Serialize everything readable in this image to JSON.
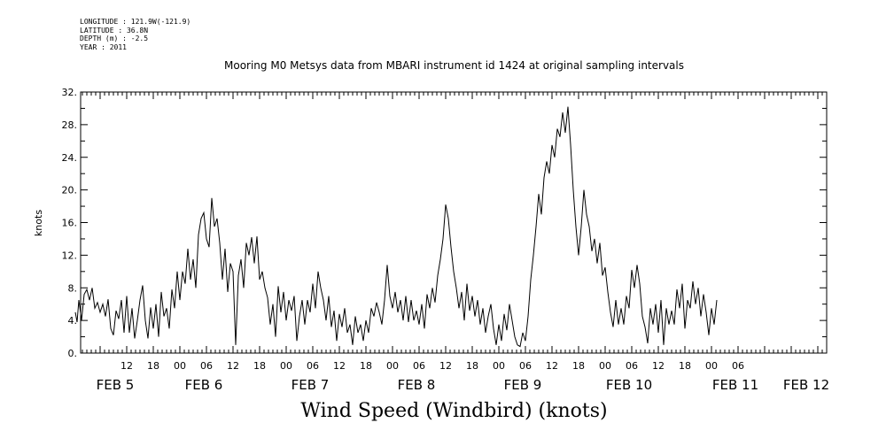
{
  "header": {
    "longitude": "LONGITUDE : 121.9W(-121.9)",
    "latitude": "LATITUDE : 36.8N",
    "depth": "DEPTH (m) : -2.5",
    "year": "YEAR : 2011"
  },
  "chart_data": {
    "type": "line",
    "title": "Mooring M0 Metsys data from MBARI instrument id 1424 at original sampling intervals",
    "xlabel": "Wind Speed (Windbird) (knots)",
    "ylabel": "knots",
    "ylim": [
      0,
      32
    ],
    "xlim": [
      -6,
      147
    ],
    "y_ticks": [
      "0.",
      "4.",
      "8.",
      "12.",
      "16.",
      "20.",
      "24.",
      "28.",
      "32."
    ],
    "hour_ticks": [
      {
        "x": 6,
        "label": "12"
      },
      {
        "x": 12,
        "label": "18"
      },
      {
        "x": 18,
        "label": "00"
      },
      {
        "x": 24,
        "label": "06"
      },
      {
        "x": 30,
        "label": "12"
      },
      {
        "x": 36,
        "label": "18"
      },
      {
        "x": 42,
        "label": "00"
      },
      {
        "x": 48,
        "label": "06"
      },
      {
        "x": 54,
        "label": "12"
      },
      {
        "x": 60,
        "label": "18"
      },
      {
        "x": 66,
        "label": "00"
      },
      {
        "x": 72,
        "label": "06"
      },
      {
        "x": 78,
        "label": "12"
      },
      {
        "x": 84,
        "label": "18"
      },
      {
        "x": 90,
        "label": "00"
      },
      {
        "x": 96,
        "label": "06"
      },
      {
        "x": 102,
        "label": "12"
      },
      {
        "x": 108,
        "label": "18"
      },
      {
        "x": 114,
        "label": "00"
      },
      {
        "x": 120,
        "label": "06"
      },
      {
        "x": 126,
        "label": "12"
      },
      {
        "x": 132,
        "label": "18"
      },
      {
        "x": 138,
        "label": "00"
      },
      {
        "x": 144,
        "label": "06"
      }
    ],
    "day_labels": [
      {
        "x": 0,
        "label": "FEB  5"
      },
      {
        "x": 24,
        "label": "FEB  6"
      },
      {
        "x": 48,
        "label": "FEB  7"
      },
      {
        "x": 72,
        "label": "FEB  8"
      },
      {
        "x": 96,
        "label": "FEB  9"
      },
      {
        "x": 120,
        "label": "FEB 10"
      },
      {
        "x": 144,
        "label": "FEB 11"
      },
      {
        "x": 160,
        "label": "FEB 12"
      }
    ],
    "series": [
      {
        "x_unit": "hours since FEB 5 06:00",
        "points": [
          [
            -5.6,
            5
          ],
          [
            -5.2,
            3.8
          ],
          [
            -4.8,
            6.5
          ],
          [
            -4.2,
            4
          ],
          [
            -3.6,
            7.2
          ],
          [
            -3,
            7.8
          ],
          [
            -2.4,
            6.5
          ],
          [
            -1.8,
            8
          ],
          [
            -1.2,
            5.5
          ],
          [
            -0.6,
            6.2
          ],
          [
            0,
            5
          ],
          [
            0.6,
            6
          ],
          [
            1.2,
            4.5
          ],
          [
            1.8,
            6.6
          ],
          [
            2.4,
            3
          ],
          [
            3,
            2.2
          ],
          [
            3.6,
            5.2
          ],
          [
            4.2,
            4.2
          ],
          [
            4.8,
            6.5
          ],
          [
            5.4,
            2.5
          ],
          [
            6,
            7
          ],
          [
            6.6,
            2.5
          ],
          [
            7.2,
            5.5
          ],
          [
            7.8,
            1.8
          ],
          [
            8.4,
            4
          ],
          [
            9,
            6.5
          ],
          [
            9.6,
            8.3
          ],
          [
            10.2,
            4
          ],
          [
            10.8,
            1.8
          ],
          [
            11.4,
            5.6
          ],
          [
            12,
            3
          ],
          [
            12.6,
            6
          ],
          [
            13.2,
            2
          ],
          [
            13.8,
            7.5
          ],
          [
            14.4,
            4.5
          ],
          [
            15,
            5.5
          ],
          [
            15.6,
            3
          ],
          [
            16.2,
            7.8
          ],
          [
            16.8,
            5.5
          ],
          [
            17.4,
            10
          ],
          [
            18,
            6.5
          ],
          [
            18.6,
            10
          ],
          [
            19.2,
            8.5
          ],
          [
            19.8,
            12.8
          ],
          [
            20.4,
            9
          ],
          [
            21,
            11.5
          ],
          [
            21.6,
            8
          ],
          [
            22.2,
            14.5
          ],
          [
            22.8,
            16.5
          ],
          [
            23.4,
            17.2
          ],
          [
            24,
            14
          ],
          [
            24.6,
            13
          ],
          [
            25.2,
            19
          ],
          [
            25.8,
            15.5
          ],
          [
            26.4,
            16.5
          ],
          [
            27,
            13.5
          ],
          [
            27.6,
            9
          ],
          [
            28.2,
            12.8
          ],
          [
            28.8,
            7.5
          ],
          [
            29.4,
            11
          ],
          [
            30,
            10
          ],
          [
            30.6,
            1
          ],
          [
            31.2,
            9.5
          ],
          [
            31.8,
            11.5
          ],
          [
            32.4,
            8
          ],
          [
            33,
            13.5
          ],
          [
            33.6,
            12
          ],
          [
            34.2,
            14.2
          ],
          [
            34.8,
            11
          ],
          [
            35.4,
            14.3
          ],
          [
            36,
            9
          ],
          [
            36.6,
            10
          ],
          [
            37.2,
            8
          ],
          [
            37.8,
            6.8
          ],
          [
            38.4,
            3.5
          ],
          [
            39,
            6
          ],
          [
            39.6,
            2
          ],
          [
            40.2,
            8.2
          ],
          [
            40.8,
            5
          ],
          [
            41.4,
            7.5
          ],
          [
            42,
            4
          ],
          [
            42.6,
            6.5
          ],
          [
            43.2,
            5.2
          ],
          [
            43.8,
            7
          ],
          [
            44.4,
            1.5
          ],
          [
            45,
            4.5
          ],
          [
            45.6,
            6.5
          ],
          [
            46.2,
            3.5
          ],
          [
            46.8,
            6.5
          ],
          [
            47.4,
            5
          ],
          [
            48,
            8.5
          ],
          [
            48.6,
            5.5
          ],
          [
            49.2,
            10
          ],
          [
            49.8,
            8
          ],
          [
            50.4,
            6.5
          ],
          [
            51,
            4
          ],
          [
            51.6,
            7
          ],
          [
            52.2,
            3.2
          ],
          [
            52.8,
            5.2
          ],
          [
            53.4,
            1.5
          ],
          [
            54,
            4.8
          ],
          [
            54.6,
            3.2
          ],
          [
            55.2,
            5.5
          ],
          [
            55.8,
            2.5
          ],
          [
            56.4,
            3.5
          ],
          [
            57,
            1
          ],
          [
            57.6,
            4.5
          ],
          [
            58.2,
            2.5
          ],
          [
            58.8,
            3.5
          ],
          [
            59.4,
            1.5
          ],
          [
            60,
            4
          ],
          [
            60.6,
            2.5
          ],
          [
            61.2,
            5.5
          ],
          [
            61.8,
            4.5
          ],
          [
            62.4,
            6.2
          ],
          [
            63,
            5
          ],
          [
            63.6,
            3.5
          ],
          [
            64.2,
            6.5
          ],
          [
            64.8,
            10.8
          ],
          [
            65.4,
            7
          ],
          [
            66,
            5.5
          ],
          [
            66.6,
            7.5
          ],
          [
            67.2,
            5
          ],
          [
            67.8,
            6.5
          ],
          [
            68.4,
            4
          ],
          [
            69,
            7
          ],
          [
            69.6,
            3.8
          ],
          [
            70.2,
            6.5
          ],
          [
            70.8,
            4
          ],
          [
            71.4,
            5.2
          ],
          [
            72,
            3.5
          ],
          [
            72.6,
            6
          ],
          [
            73.2,
            3
          ],
          [
            73.8,
            7.2
          ],
          [
            74.4,
            5.5
          ],
          [
            75,
            8
          ],
          [
            75.6,
            6.2
          ],
          [
            76.2,
            9.5
          ],
          [
            76.8,
            11.5
          ],
          [
            77.4,
            14
          ],
          [
            78,
            18.2
          ],
          [
            78.6,
            16.5
          ],
          [
            79.2,
            13
          ],
          [
            79.8,
            10
          ],
          [
            80.4,
            8
          ],
          [
            81,
            5.5
          ],
          [
            81.6,
            7.5
          ],
          [
            82.2,
            4
          ],
          [
            82.8,
            8.5
          ],
          [
            83.4,
            5.2
          ],
          [
            84,
            7
          ],
          [
            84.6,
            4.5
          ],
          [
            85.2,
            6.5
          ],
          [
            85.8,
            3.5
          ],
          [
            86.4,
            5.5
          ],
          [
            87,
            2.5
          ],
          [
            87.6,
            4.5
          ],
          [
            88.2,
            6
          ],
          [
            88.8,
            3
          ],
          [
            89.4,
            1
          ],
          [
            90,
            3.5
          ],
          [
            90.6,
            1.5
          ],
          [
            91.2,
            4.8
          ],
          [
            91.8,
            2.8
          ],
          [
            92.4,
            6
          ],
          [
            93,
            4
          ],
          [
            93.6,
            2
          ],
          [
            94.2,
            1
          ],
          [
            94.8,
            0.8
          ],
          [
            95.4,
            2.5
          ],
          [
            96,
            1.5
          ],
          [
            96.6,
            4.5
          ],
          [
            97.2,
            9
          ],
          [
            97.8,
            12
          ],
          [
            98.4,
            15.5
          ],
          [
            99,
            19.5
          ],
          [
            99.6,
            17
          ],
          [
            100.2,
            21.5
          ],
          [
            100.8,
            23.5
          ],
          [
            101.4,
            22
          ],
          [
            102,
            25.5
          ],
          [
            102.6,
            24
          ],
          [
            103.2,
            27.5
          ],
          [
            103.8,
            26.5
          ],
          [
            104.4,
            29.5
          ],
          [
            105,
            27
          ],
          [
            105.6,
            30.2
          ],
          [
            106.2,
            25.5
          ],
          [
            106.8,
            20
          ],
          [
            107.4,
            15.5
          ],
          [
            108,
            12
          ],
          [
            108.6,
            15.5
          ],
          [
            109.2,
            20
          ],
          [
            109.8,
            17
          ],
          [
            110.4,
            15.5
          ],
          [
            111,
            12.5
          ],
          [
            111.6,
            14
          ],
          [
            112.2,
            11
          ],
          [
            112.8,
            13.5
          ],
          [
            113.4,
            9.5
          ],
          [
            114,
            10.5
          ],
          [
            114.6,
            7.5
          ],
          [
            115.2,
            5
          ],
          [
            115.8,
            3.2
          ],
          [
            116.4,
            6.5
          ],
          [
            117,
            3.5
          ],
          [
            117.6,
            5.5
          ],
          [
            118.2,
            3.5
          ],
          [
            118.8,
            7
          ],
          [
            119.4,
            5.5
          ],
          [
            120,
            10.2
          ],
          [
            120.6,
            8
          ],
          [
            121.2,
            10.8
          ],
          [
            121.8,
            8.5
          ],
          [
            122.4,
            4.5
          ],
          [
            123,
            3.2
          ],
          [
            123.6,
            1.2
          ],
          [
            124.2,
            5.5
          ],
          [
            124.8,
            3.5
          ],
          [
            125.4,
            6
          ],
          [
            126,
            2.5
          ],
          [
            126.6,
            6.5
          ],
          [
            127.2,
            1
          ],
          [
            127.8,
            5.5
          ],
          [
            128.4,
            3.5
          ],
          [
            129,
            5.2
          ],
          [
            129.6,
            3.5
          ],
          [
            130.2,
            7.8
          ],
          [
            130.8,
            5.5
          ],
          [
            131.4,
            8.5
          ],
          [
            132,
            3
          ],
          [
            132.6,
            6.5
          ],
          [
            133.2,
            5.5
          ],
          [
            133.8,
            8.8
          ],
          [
            134.4,
            6
          ],
          [
            135,
            8
          ],
          [
            135.6,
            4.5
          ],
          [
            136.2,
            7.2
          ],
          [
            136.8,
            5
          ],
          [
            137.4,
            2.2
          ],
          [
            138,
            5.5
          ],
          [
            138.6,
            3.5
          ],
          [
            139.2,
            6.5
          ]
        ]
      }
    ]
  }
}
